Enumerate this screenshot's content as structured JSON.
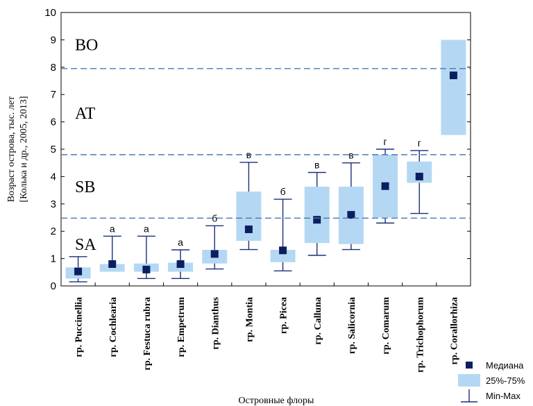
{
  "chart_data": {
    "type": "box",
    "xlabel": "Островные флоры",
    "ylabel_lines": [
      "Возраст острова, тыс. лет",
      "[Колька и др., 2005, 2013]"
    ],
    "ylim": [
      0,
      10
    ],
    "yticks": [
      0,
      1,
      2,
      3,
      4,
      5,
      6,
      7,
      8,
      9,
      10
    ],
    "categories": [
      "гр. Puccinellia",
      "гр. Cochlearia",
      "гр. Festuca rubra",
      "гр. Empetrum",
      "гр. Dianthus",
      "гр. Montia",
      "гр. Picea",
      "гр. Calluna",
      "гр. Salicornia",
      "гр. Comarum",
      "гр. Trichophorum",
      "гр. Corallorhiza"
    ],
    "min": [
      0.15,
      null,
      0.27,
      0.27,
      0.62,
      1.33,
      0.55,
      1.12,
      1.33,
      2.3,
      2.65,
      null
    ],
    "q25": [
      0.27,
      0.52,
      0.52,
      0.52,
      0.82,
      1.65,
      0.87,
      1.57,
      1.53,
      2.5,
      3.77,
      5.52
    ],
    "median": [
      0.53,
      0.8,
      0.6,
      0.8,
      1.17,
      2.07,
      1.3,
      2.42,
      2.6,
      3.65,
      4.0,
      7.7
    ],
    "q75": [
      0.68,
      0.8,
      0.82,
      0.85,
      1.32,
      3.45,
      1.32,
      3.63,
      3.63,
      4.8,
      4.55,
      9.0
    ],
    "max": [
      1.07,
      1.82,
      1.82,
      1.32,
      2.2,
      4.52,
      3.17,
      4.15,
      4.5,
      5.0,
      4.95,
      null
    ],
    "group_letters": [
      "",
      "а",
      "а",
      "а",
      "б",
      "в",
      "б",
      "в",
      "в",
      "г",
      "г",
      ""
    ],
    "reference_lines": [
      2.48,
      4.8,
      7.95
    ],
    "epoch_labels": [
      {
        "text": "BO",
        "y": 8.85
      },
      {
        "text": "AT",
        "y": 6.35
      },
      {
        "text": "SB",
        "y": 3.65
      },
      {
        "text": "SA",
        "y": 1.55
      }
    ],
    "legend": [
      {
        "label": "Медиана",
        "kind": "median"
      },
      {
        "label": "25%-75%",
        "kind": "box"
      },
      {
        "label": "Min-Max",
        "kind": "whisker"
      }
    ],
    "legend_position": "bottom-right",
    "grid": false,
    "colors": {
      "box_fill": "#b4d8f4",
      "median": "#0b1f5e",
      "whisker": "#1a2f7a",
      "reference_line": "#4a78b0",
      "axis": "#000000"
    }
  }
}
